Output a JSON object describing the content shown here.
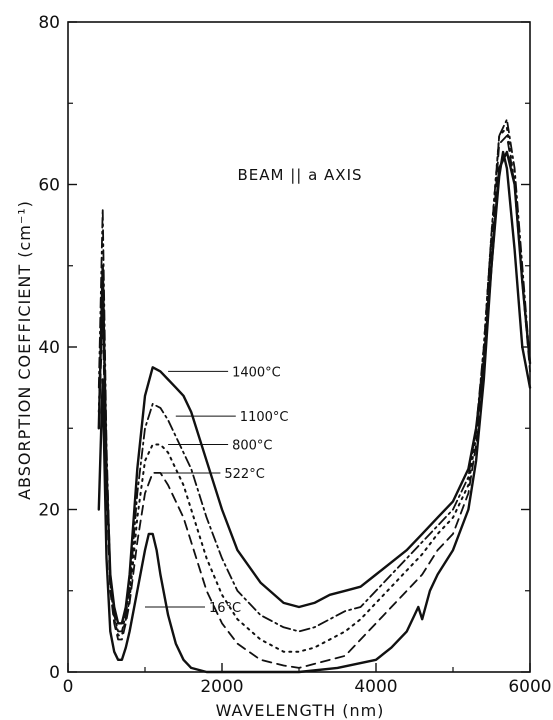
{
  "chart_data": {
    "type": "line",
    "title": "BEAM || a AXIS",
    "xlabel": "WAVELENGTH (nm)",
    "ylabel": "ABSORPTION COEFFICIENT (cm⁻¹)",
    "xlim": [
      0,
      6000
    ],
    "ylim": [
      0,
      80
    ],
    "xticks": [
      0,
      2000,
      4000,
      6000
    ],
    "yticks": [
      0,
      20,
      40,
      60,
      80
    ],
    "grid": false,
    "series": [
      {
        "name": "1400°C",
        "style": "solid",
        "x": [
          400,
          450,
          500,
          550,
          600,
          650,
          700,
          750,
          800,
          900,
          1000,
          1100,
          1200,
          1300,
          1400,
          1500,
          1600,
          1800,
          2000,
          2200,
          2500,
          2800,
          3000,
          3200,
          3400,
          3600,
          3800,
          4000,
          4200,
          4400,
          4600,
          4800,
          5000,
          5200,
          5300,
          5400,
          5500,
          5600,
          5700,
          5800,
          5900,
          6000
        ],
        "values": [
          30,
          50,
          25,
          12,
          8,
          6,
          6,
          8,
          12,
          25,
          34,
          37.5,
          37,
          36,
          35,
          34,
          32,
          26,
          20,
          15,
          11,
          8.5,
          8,
          8.5,
          9.5,
          10,
          10.5,
          12,
          13.5,
          15,
          17,
          19,
          21,
          25,
          30,
          38,
          50,
          62,
          64,
          60,
          48,
          38
        ]
      },
      {
        "name": "1100°C",
        "style": "dash-dot",
        "x": [
          400,
          450,
          500,
          550,
          600,
          650,
          700,
          750,
          800,
          900,
          1000,
          1100,
          1200,
          1300,
          1400,
          1500,
          1600,
          1800,
          2000,
          2200,
          2500,
          2800,
          3000,
          3200,
          3400,
          3600,
          3800,
          4000,
          4200,
          4400,
          4600,
          4800,
          5000,
          5200,
          5300,
          5400,
          5500,
          5600,
          5700,
          5800,
          5900,
          6000
        ],
        "values": [
          35,
          57,
          28,
          12,
          7,
          5,
          5,
          7,
          10,
          22,
          30,
          33,
          32.5,
          31,
          29,
          27,
          25,
          19,
          14,
          10,
          7,
          5.5,
          5,
          5.5,
          6.5,
          7.5,
          8,
          10,
          12,
          14,
          16,
          18,
          20,
          24,
          30,
          40,
          54,
          66,
          68,
          62,
          50,
          38
        ]
      },
      {
        "name": "800°C",
        "style": "dotted",
        "x": [
          400,
          450,
          500,
          550,
          600,
          650,
          700,
          750,
          800,
          900,
          1000,
          1100,
          1200,
          1300,
          1400,
          1500,
          1600,
          1800,
          2000,
          2200,
          2500,
          2800,
          3000,
          3200,
          3400,
          3600,
          3800,
          4000,
          4200,
          4400,
          4600,
          4800,
          5000,
          5200,
          5300,
          5400,
          5500,
          5600,
          5700,
          5800,
          5900,
          6000
        ],
        "values": [
          32,
          48,
          24,
          11,
          6.5,
          4.5,
          4.5,
          6.5,
          9,
          19,
          26,
          28,
          28,
          27,
          25,
          23,
          20,
          14,
          9.5,
          6.5,
          4,
          2.5,
          2.5,
          3,
          4,
          5,
          6.5,
          8.5,
          10.5,
          12.5,
          14.5,
          17,
          19,
          23,
          29,
          40,
          54,
          66,
          67,
          60,
          48,
          38
        ]
      },
      {
        "name": "522°C",
        "style": "dashed",
        "x": [
          400,
          450,
          500,
          550,
          600,
          650,
          700,
          750,
          800,
          900,
          1000,
          1100,
          1200,
          1300,
          1400,
          1500,
          1600,
          1800,
          2000,
          2200,
          2500,
          2800,
          3000,
          3200,
          3400,
          3600,
          3800,
          4000,
          4200,
          4400,
          4600,
          4800,
          5000,
          5200,
          5300,
          5400,
          5500,
          5600,
          5700,
          5800,
          5900,
          6000
        ],
        "values": [
          30,
          44,
          22,
          10,
          6,
          4,
          4,
          6,
          8.5,
          16,
          22,
          24.5,
          24.5,
          23,
          21,
          19,
          16,
          10,
          6,
          3.5,
          1.5,
          0.8,
          0.5,
          1,
          1.5,
          2,
          4,
          6,
          8,
          10,
          12,
          15,
          17,
          22,
          28,
          38,
          52,
          65,
          66,
          60,
          48,
          37
        ]
      },
      {
        "name": "16°C",
        "style": "solid",
        "x": [
          400,
          450,
          500,
          550,
          600,
          650,
          700,
          750,
          800,
          900,
          1000,
          1050,
          1100,
          1150,
          1200,
          1300,
          1400,
          1500,
          1600,
          1800,
          2000,
          2500,
          3000,
          3500,
          4000,
          4200,
          4400,
          4500,
          4550,
          4600,
          4700,
          4800,
          5000,
          5200,
          5300,
          5400,
          5500,
          5600,
          5650,
          5700,
          5800,
          5900,
          6000
        ],
        "values": [
          20,
          36,
          14,
          5,
          2.5,
          1.5,
          1.5,
          3,
          5,
          10,
          15,
          17,
          17,
          15,
          12,
          7,
          3.5,
          1.5,
          0.5,
          0,
          0,
          0,
          0,
          0.5,
          1.5,
          3,
          5,
          7,
          8,
          6.5,
          10,
          12,
          15,
          20,
          26,
          36,
          50,
          61,
          64,
          62,
          52,
          40,
          35
        ]
      }
    ],
    "annotations": [
      {
        "text": "1400°C",
        "x": 1300,
        "y": 37
      },
      {
        "text": "1100°C",
        "x": 1400,
        "y": 31.5
      },
      {
        "text": "800°C",
        "x": 1300,
        "y": 28
      },
      {
        "text": "522°C",
        "x": 1200,
        "y": 24.5
      },
      {
        "text": "16°C",
        "x": 1000,
        "y": 8
      }
    ]
  }
}
